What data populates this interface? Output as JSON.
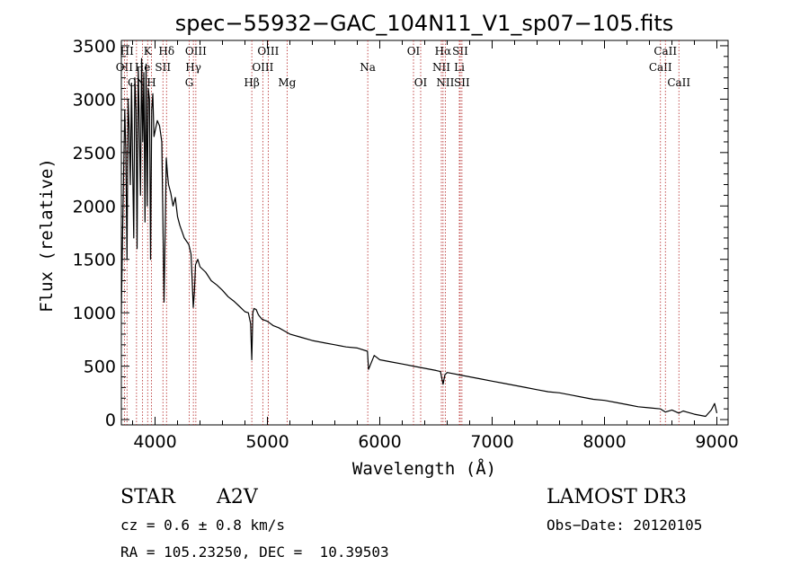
{
  "chart_data": {
    "type": "line",
    "title": "spec−55932−GAC_104N11_V1_sp07−105.fits",
    "xlabel": "Wavelength (Å)",
    "ylabel": "Flux (relative)",
    "xlim": [
      3700,
      9100
    ],
    "ylim": [
      -50,
      3550
    ],
    "xticks": [
      4000,
      5000,
      6000,
      7000,
      8000,
      9000
    ],
    "xtick_labels": [
      "4000",
      "5000",
      "6000",
      "7000",
      "8000",
      "9000"
    ],
    "yticks": [
      0,
      500,
      1000,
      1500,
      2000,
      2500,
      3000,
      3500
    ],
    "ytick_labels": [
      "0",
      "500",
      "1000",
      "1500",
      "2000",
      "2500",
      "3000",
      "3500"
    ],
    "line_color": "#000000",
    "marker_color": "#b22222",
    "spectrum": {
      "x": [
        3700,
        3710,
        3720,
        3730,
        3740,
        3750,
        3760,
        3770,
        3780,
        3790,
        3800,
        3810,
        3820,
        3830,
        3840,
        3850,
        3860,
        3870,
        3880,
        3890,
        3900,
        3910,
        3920,
        3930,
        3940,
        3950,
        3960,
        3970,
        3980,
        3990,
        4000,
        4020,
        4040,
        4060,
        4080,
        4100,
        4110,
        4120,
        4140,
        4160,
        4180,
        4200,
        4220,
        4240,
        4260,
        4280,
        4300,
        4320,
        4330,
        4340,
        4350,
        4360,
        4380,
        4400,
        4450,
        4500,
        4550,
        4600,
        4650,
        4700,
        4750,
        4800,
        4830,
        4850,
        4861,
        4870,
        4880,
        4900,
        4920,
        4950,
        5000,
        5050,
        5100,
        5150,
        5200,
        5300,
        5400,
        5500,
        5600,
        5700,
        5800,
        5890,
        5900,
        5950,
        6000,
        6100,
        6200,
        6300,
        6400,
        6500,
        6540,
        6563,
        6580,
        6600,
        6700,
        6800,
        6900,
        7000,
        7100,
        7200,
        7300,
        7400,
        7500,
        7600,
        7700,
        7800,
        7900,
        8000,
        8100,
        8200,
        8300,
        8400,
        8498,
        8542,
        8600,
        8662,
        8700,
        8800,
        8900,
        8950,
        8980,
        9000
      ],
      "y": [
        1000,
        1700,
        2300,
        2900,
        2500,
        1500,
        3000,
        2700,
        2200,
        3150,
        2400,
        1700,
        3200,
        2900,
        1600,
        3300,
        2750,
        2100,
        3380,
        2600,
        3250,
        1850,
        3330,
        2000,
        3100,
        3000,
        1500,
        2900,
        3050,
        2650,
        2700,
        2800,
        2750,
        2600,
        1100,
        2450,
        2300,
        2200,
        2120,
        2000,
        2080,
        1900,
        1820,
        1760,
        1700,
        1670,
        1640,
        1550,
        1300,
        1050,
        1200,
        1450,
        1500,
        1430,
        1380,
        1300,
        1260,
        1210,
        1150,
        1110,
        1060,
        1010,
        1000,
        900,
        560,
        1000,
        1040,
        1030,
        980,
        940,
        920,
        880,
        860,
        830,
        800,
        770,
        740,
        720,
        700,
        680,
        670,
        640,
        470,
        600,
        560,
        540,
        520,
        500,
        480,
        460,
        450,
        330,
        420,
        440,
        420,
        400,
        380,
        360,
        340,
        320,
        300,
        280,
        260,
        250,
        230,
        210,
        190,
        180,
        160,
        140,
        120,
        110,
        100,
        70,
        90,
        60,
        80,
        50,
        30,
        90,
        150,
        60
      ]
    },
    "lines": [
      {
        "wl": 3727,
        "label": "OII",
        "row": 2
      },
      {
        "wl": 3750,
        "label": "HI",
        "row": 1
      },
      {
        "wl": 3835,
        "label": "CN",
        "row": 3
      },
      {
        "wl": 3889,
        "label": "He",
        "row": 2
      },
      {
        "wl": 3934,
        "label": "K",
        "row": 1
      },
      {
        "wl": 3968,
        "label": "H",
        "row": 3
      },
      {
        "wl": 4070,
        "label": "SII",
        "row": 2
      },
      {
        "wl": 4102,
        "label": "Hδ",
        "row": 1
      },
      {
        "wl": 4304,
        "label": "G",
        "row": 3
      },
      {
        "wl": 4341,
        "label": "Hγ",
        "row": 2
      },
      {
        "wl": 4363,
        "label": "OIII",
        "row": 1
      },
      {
        "wl": 4861,
        "label": "Hβ",
        "row": 3
      },
      {
        "wl": 4959,
        "label": "OIII",
        "row": 2
      },
      {
        "wl": 5007,
        "label": "OIII",
        "row": 1
      },
      {
        "wl": 5175,
        "label": "Mg",
        "row": 3
      },
      {
        "wl": 5893,
        "label": "Na",
        "row": 2
      },
      {
        "wl": 6300,
        "label": "OI",
        "row": 1
      },
      {
        "wl": 6364,
        "label": "OI",
        "row": 3
      },
      {
        "wl": 6548,
        "label": "NII",
        "row": 2
      },
      {
        "wl": 6563,
        "label": "Hα",
        "row": 1
      },
      {
        "wl": 6583,
        "label": "NII",
        "row": 3
      },
      {
        "wl": 6708,
        "label": "Li",
        "row": 2
      },
      {
        "wl": 6716,
        "label": "SII",
        "row": 1
      },
      {
        "wl": 6731,
        "label": "SII",
        "row": 3
      },
      {
        "wl": 8498,
        "label": "CaII",
        "row": 2
      },
      {
        "wl": 8542,
        "label": "CaII",
        "row": 1
      },
      {
        "wl": 8662,
        "label": "CaII",
        "row": 3
      }
    ]
  },
  "info": {
    "object_class": "STAR",
    "subclass": "A2V",
    "survey": "LAMOST DR3",
    "cz": "cz = 0.6 ± 0.8 km/s",
    "obs_date": "Obs−Date: 20120105",
    "coords": "RA = 105.23250, DEC =  10.39503"
  }
}
